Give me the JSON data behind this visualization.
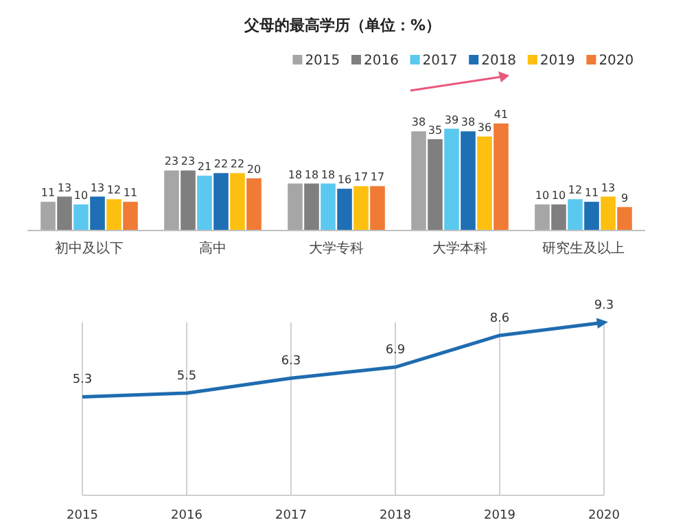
{
  "chart_data": [
    {
      "type": "bar",
      "title": "父母的最高学历（单位：%）",
      "categories": [
        "初中及以下",
        "高中",
        "大学专科",
        "大学本科",
        "研究生及以上"
      ],
      "legend": "top right",
      "data_labels": true,
      "series": [
        {
          "name": "2015",
          "color": "#a6a6a6",
          "values": [
            11,
            23,
            18,
            38,
            10
          ]
        },
        {
          "name": "2016",
          "color": "#7f7f7f",
          "values": [
            13,
            23,
            18,
            35,
            10
          ]
        },
        {
          "name": "2017",
          "color": "#5bc8f0",
          "values": [
            10,
            21,
            18,
            39,
            12
          ]
        },
        {
          "name": "2018",
          "color": "#1f6fb5",
          "values": [
            13,
            22,
            16,
            38,
            11
          ]
        },
        {
          "name": "2019",
          "color": "#fdc010",
          "values": [
            12,
            22,
            17,
            36,
            13
          ]
        },
        {
          "name": "2020",
          "color": "#f07b35",
          "values": [
            11,
            20,
            17,
            41,
            9
          ]
        }
      ]
    },
    {
      "type": "line",
      "categories": [
        "2015",
        "2016",
        "2017",
        "2018",
        "2019",
        "2020"
      ],
      "data_labels": true,
      "grid": "x",
      "series": [
        {
          "color": "#1f6cb0",
          "values": [
            5.3,
            5.5,
            6.3,
            6.9,
            8.6,
            9.3
          ]
        }
      ]
    }
  ]
}
